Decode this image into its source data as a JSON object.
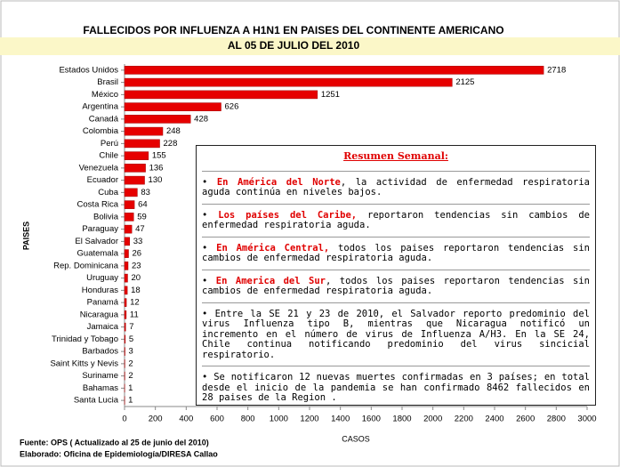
{
  "chart_data": {
    "type": "bar",
    "orientation": "horizontal",
    "title": [
      "FALLECIDOS POR INFLUENZA A H1N1 EN PAISES DEL CONTINENTE AMERICANO",
      "AL 05 DE JULIO DEL 2010"
    ],
    "categories": [
      "Estados Unidos",
      "Brasil",
      "México",
      "Argentina",
      "Canadá",
      "Colombia",
      "Perú",
      "Chile",
      "Venezuela",
      "Ecuador",
      "Cuba",
      "Costa Rica",
      "Bolivia",
      "Paraguay",
      "El Salvador",
      "Guatemala",
      "Rep. Dominicana",
      "Uruguay",
      "Honduras",
      "Panamá",
      "Nicaragua",
      "Jamaica",
      "Trinidad y Tobago",
      "Barbados",
      "Saint Kitts y Nevis",
      "Suriname",
      "Bahamas",
      "Santa Lucia"
    ],
    "values": [
      2718,
      2125,
      1251,
      626,
      428,
      248,
      228,
      155,
      136,
      130,
      83,
      64,
      59,
      47,
      33,
      26,
      23,
      20,
      18,
      12,
      11,
      7,
      5,
      3,
      2,
      2,
      1,
      1
    ],
    "color": "#e60000",
    "xlim": [
      0,
      3000
    ],
    "xticks": [
      0,
      200,
      400,
      600,
      800,
      1000,
      1200,
      1400,
      1600,
      1800,
      2000,
      2200,
      2400,
      2600,
      2800,
      3000
    ],
    "xlabel": "CASOS",
    "ylabel": "PAISES",
    "grid": false,
    "footer": [
      "Fuente:  OPS ( Actualizado al 25 de junio del 2010)",
      "Elaborado: Oficina de Epidemiología/DIRESA Callao"
    ],
    "summary": {
      "title": "Resumen Semanal:",
      "items": [
        {
          "highlight": "En América del Norte",
          "text": ", la actividad de enfermedad respiratoria aguda continúa en niveles bajos."
        },
        {
          "highlight": "Los países del Caribe,",
          "text": " reportaron tendencias sin cambios de enfermedad respiratoria aguda."
        },
        {
          "highlight": "En América Central,",
          "text": " todos los paises reportaron tendencias sin cambios de enfermedad respiratoria aguda."
        },
        {
          "highlight": "En America del Sur",
          "text": ", todos los paises reportaron tendencias sin cambios de enfermedad respiratoria aguda."
        },
        {
          "text": "Entre la SE 21 y 23 de 2010, el Salvador reporto predominio del virus Influenza tipo B, mientras que Nicaragua notificó un incremento en el número de virus de Influenza A/H3. En la SE 24, Chile continua notificando predominio del virus sincicial respiratorio."
        },
        {
          "text": "Se notificaron 12 nuevas muertes confirmadas en 3 países; en total desde el inicio de la pandemia se han confirmado 8462 fallecidos en 28 paises de la Region ."
        }
      ]
    }
  }
}
